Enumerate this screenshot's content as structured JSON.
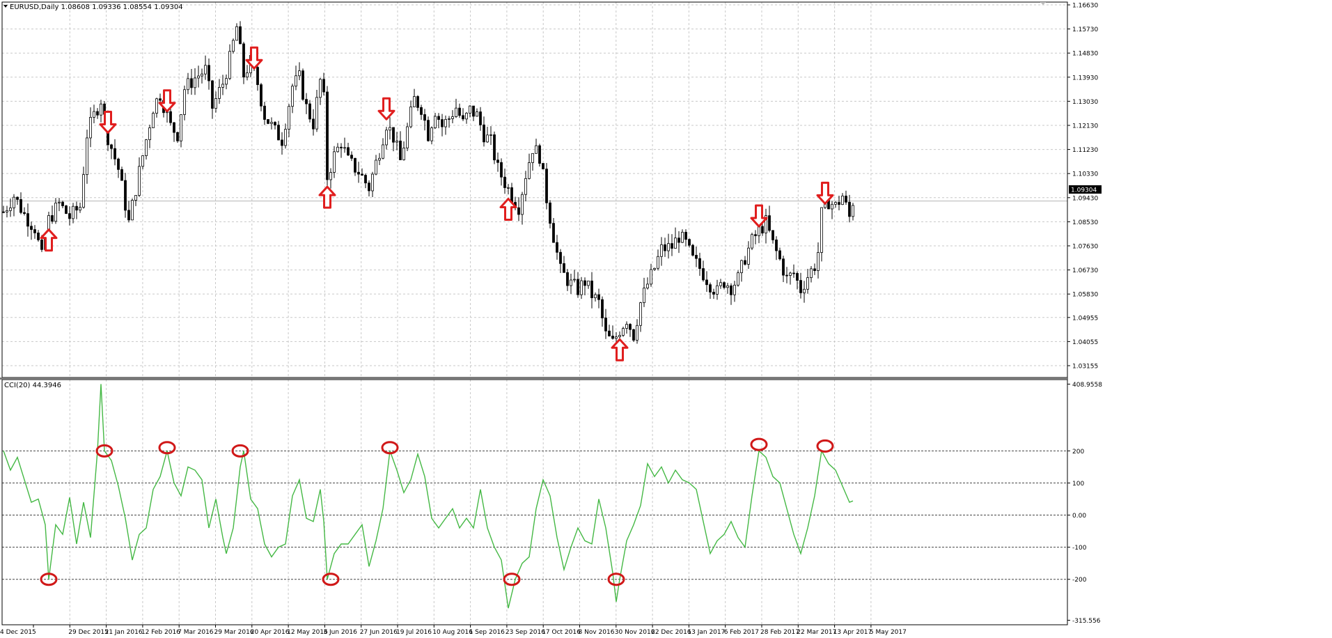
{
  "main_label": "EURUSD,Daily  1.08608 1.09336 1.08554 1.09304",
  "current_price": "1.09304",
  "indicator_label": "CCI(20) 44.3946",
  "colors": {
    "candle": "#000000",
    "cci_line": "#44b844",
    "arrow": "#e01e1e",
    "circle": "#d01818",
    "price_box": "#000000"
  },
  "chart_data": [
    {
      "type": "candlestick",
      "x_tick_labels": [
        "4 Dec 2015",
        "29 Dec 2015",
        "21 Jan 2016",
        "12 Feb 2016",
        "7 Mar 2016",
        "29 Mar 2016",
        "20 Apr 2016",
        "12 May 2016",
        "3 Jun 2016",
        "27 Jun 2016",
        "19 Jul 2016",
        "10 Aug 2016",
        "1 Sep 2016",
        "23 Sep 2016",
        "17 Oct 2016",
        "8 Nov 2016",
        "30 Nov 2016",
        "22 Dec 2016",
        "13 Jan 2017",
        "6 Feb 2017",
        "28 Feb 2017",
        "22 Mar 2017",
        "13 Apr 2017",
        "5 May 2017"
      ],
      "y_tick_labels": [
        "1.16630",
        "1.15730",
        "1.14830",
        "1.13930",
        "1.13030",
        "1.12130",
        "1.11230",
        "1.10330",
        "1.09430",
        "1.08530",
        "1.07630",
        "1.06730",
        "1.05830",
        "1.04955",
        "1.04055",
        "1.03155"
      ],
      "ylim": [
        1.03155,
        1.1663
      ],
      "price_path": [
        [
          0,
          1.089
        ],
        [
          3,
          1.095
        ],
        [
          6,
          1.088
        ],
        [
          9,
          1.083
        ],
        [
          11,
          1.072
        ],
        [
          13,
          1.086
        ],
        [
          16,
          1.092
        ],
        [
          19,
          1.087
        ],
        [
          22,
          1.091
        ],
        [
          24,
          1.118
        ],
        [
          26,
          1.125
        ],
        [
          28,
          1.131
        ],
        [
          30,
          1.117
        ],
        [
          33,
          1.105
        ],
        [
          36,
          1.085
        ],
        [
          39,
          1.104
        ],
        [
          41,
          1.116
        ],
        [
          43,
          1.128
        ],
        [
          45,
          1.133
        ],
        [
          48,
          1.121
        ],
        [
          50,
          1.118
        ],
        [
          52,
          1.135
        ],
        [
          55,
          1.139
        ],
        [
          58,
          1.142
        ],
        [
          60,
          1.128
        ],
        [
          63,
          1.137
        ],
        [
          65,
          1.146
        ],
        [
          67,
          1.158
        ],
        [
          69,
          1.14
        ],
        [
          71,
          1.145
        ],
        [
          73,
          1.137
        ],
        [
          75,
          1.125
        ],
        [
          78,
          1.119
        ],
        [
          80,
          1.116
        ],
        [
          83,
          1.136
        ],
        [
          85,
          1.139
        ],
        [
          87,
          1.128
        ],
        [
          89,
          1.122
        ],
        [
          91,
          1.138
        ],
        [
          92,
          1.131
        ],
        [
          93,
          1.102
        ],
        [
          95,
          1.11
        ],
        [
          97,
          1.115
        ],
        [
          99,
          1.108
        ],
        [
          102,
          1.104
        ],
        [
          105,
          1.098
        ],
        [
          108,
          1.112
        ],
        [
          110,
          1.122
        ],
        [
          112,
          1.117
        ],
        [
          114,
          1.108
        ],
        [
          116,
          1.12
        ],
        [
          118,
          1.131
        ],
        [
          120,
          1.128
        ],
        [
          122,
          1.118
        ],
        [
          124,
          1.127
        ],
        [
          126,
          1.121
        ],
        [
          128,
          1.124
        ],
        [
          130,
          1.128
        ],
        [
          132,
          1.122
        ],
        [
          134,
          1.127
        ],
        [
          136,
          1.125
        ],
        [
          138,
          1.118
        ],
        [
          140,
          1.115
        ],
        [
          142,
          1.105
        ],
        [
          144,
          1.1
        ],
        [
          146,
          1.095
        ],
        [
          148,
          1.091
        ],
        [
          150,
          1.103
        ],
        [
          152,
          1.113
        ],
        [
          154,
          1.11
        ],
        [
          156,
          1.094
        ],
        [
          158,
          1.08
        ],
        [
          160,
          1.067
        ],
        [
          163,
          1.062
        ],
        [
          165,
          1.06
        ],
        [
          167,
          1.063
        ],
        [
          169,
          1.058
        ],
        [
          171,
          1.055
        ],
        [
          173,
          1.043
        ],
        [
          175,
          1.04
        ],
        [
          177,
          1.045
        ],
        [
          179,
          1.049
        ],
        [
          181,
          1.043
        ],
        [
          183,
          1.055
        ],
        [
          185,
          1.062
        ],
        [
          187,
          1.068
        ],
        [
          189,
          1.075
        ],
        [
          192,
          1.076
        ],
        [
          194,
          1.08
        ],
        [
          196,
          1.077
        ],
        [
          198,
          1.071
        ],
        [
          200,
          1.068
        ],
        [
          203,
          1.062
        ],
        [
          205,
          1.059
        ],
        [
          207,
          1.063
        ],
        [
          209,
          1.061
        ],
        [
          211,
          1.064
        ],
        [
          213,
          1.072
        ],
        [
          215,
          1.078
        ],
        [
          217,
          1.082
        ],
        [
          219,
          1.085
        ],
        [
          221,
          1.077
        ],
        [
          223,
          1.071
        ],
        [
          225,
          1.064
        ],
        [
          227,
          1.066
        ],
        [
          229,
          1.06
        ],
        [
          231,
          1.065
        ],
        [
          233,
          1.069
        ],
        [
          234,
          1.074
        ],
        [
          235,
          1.088
        ],
        [
          237,
          1.093
        ],
        [
          239,
          1.091
        ],
        [
          241,
          1.095
        ],
        [
          243,
          1.087
        ],
        [
          244,
          1.093
        ]
      ]
    },
    {
      "type": "line",
      "title": "CCI(20) 44.3946",
      "y_tick_labels": [
        "408.9558",
        "200",
        "100",
        "0.00",
        "-100",
        "-200",
        "-315.556"
      ],
      "ylim": [
        -315.556,
        408.9558
      ],
      "levels": [
        200,
        100,
        0,
        -100,
        -200
      ],
      "series": [
        {
          "values": [
            [
              0,
              200
            ],
            [
              2,
              140
            ],
            [
              4,
              180
            ],
            [
              6,
              110
            ],
            [
              8,
              40
            ],
            [
              10,
              50
            ],
            [
              12,
              -30
            ],
            [
              13,
              -200
            ],
            [
              15,
              -30
            ],
            [
              17,
              -60
            ],
            [
              19,
              55
            ],
            [
              21,
              -90
            ],
            [
              23,
              40
            ],
            [
              25,
              -70
            ],
            [
              27,
              200
            ],
            [
              28,
              408
            ],
            [
              29,
              200
            ],
            [
              31,
              170
            ],
            [
              33,
              90
            ],
            [
              35,
              -10
            ],
            [
              37,
              -140
            ],
            [
              39,
              -60
            ],
            [
              41,
              -40
            ],
            [
              43,
              80
            ],
            [
              45,
              120
            ],
            [
              47,
              200
            ],
            [
              49,
              100
            ],
            [
              51,
              60
            ],
            [
              53,
              150
            ],
            [
              55,
              140
            ],
            [
              57,
              110
            ],
            [
              59,
              -40
            ],
            [
              61,
              50
            ],
            [
              63,
              -70
            ],
            [
              64,
              -120
            ],
            [
              66,
              -40
            ],
            [
              68,
              150
            ],
            [
              69,
              200
            ],
            [
              71,
              50
            ],
            [
              73,
              20
            ],
            [
              75,
              -90
            ],
            [
              77,
              -130
            ],
            [
              79,
              -100
            ],
            [
              81,
              -90
            ],
            [
              83,
              60
            ],
            [
              85,
              110
            ],
            [
              87,
              -10
            ],
            [
              89,
              -20
            ],
            [
              91,
              80
            ],
            [
              92,
              -20
            ],
            [
              93,
              -200
            ],
            [
              95,
              -120
            ],
            [
              97,
              -90
            ],
            [
              99,
              -90
            ],
            [
              101,
              -60
            ],
            [
              103,
              -30
            ],
            [
              105,
              -160
            ],
            [
              107,
              -80
            ],
            [
              109,
              20
            ],
            [
              111,
              200
            ],
            [
              113,
              140
            ],
            [
              115,
              70
            ],
            [
              117,
              110
            ],
            [
              119,
              190
            ],
            [
              121,
              120
            ],
            [
              123,
              -10
            ],
            [
              125,
              -40
            ],
            [
              127,
              -10
            ],
            [
              129,
              20
            ],
            [
              131,
              -40
            ],
            [
              133,
              -10
            ],
            [
              135,
              -40
            ],
            [
              137,
              80
            ],
            [
              139,
              -40
            ],
            [
              141,
              -100
            ],
            [
              143,
              -140
            ],
            [
              145,
              -290
            ],
            [
              147,
              -200
            ],
            [
              149,
              -150
            ],
            [
              151,
              -130
            ],
            [
              153,
              20
            ],
            [
              155,
              110
            ],
            [
              157,
              60
            ],
            [
              159,
              -70
            ],
            [
              161,
              -170
            ],
            [
              163,
              -100
            ],
            [
              165,
              -40
            ],
            [
              167,
              -80
            ],
            [
              169,
              -90
            ],
            [
              171,
              50
            ],
            [
              173,
              -40
            ],
            [
              175,
              -180
            ],
            [
              176,
              -270
            ],
            [
              177,
              -200
            ],
            [
              179,
              -80
            ],
            [
              181,
              -30
            ],
            [
              183,
              30
            ],
            [
              185,
              160
            ],
            [
              187,
              120
            ],
            [
              189,
              150
            ],
            [
              191,
              100
            ],
            [
              193,
              140
            ],
            [
              195,
              110
            ],
            [
              197,
              100
            ],
            [
              199,
              80
            ],
            [
              201,
              -20
            ],
            [
              203,
              -120
            ],
            [
              205,
              -80
            ],
            [
              207,
              -60
            ],
            [
              209,
              -20
            ],
            [
              211,
              -70
            ],
            [
              213,
              -100
            ],
            [
              215,
              60
            ],
            [
              217,
              200
            ],
            [
              219,
              180
            ],
            [
              221,
              120
            ],
            [
              223,
              100
            ],
            [
              225,
              20
            ],
            [
              227,
              -60
            ],
            [
              229,
              -120
            ],
            [
              231,
              -40
            ],
            [
              233,
              60
            ],
            [
              235,
              200
            ],
            [
              237,
              160
            ],
            [
              239,
              140
            ],
            [
              241,
              90
            ],
            [
              243,
              40
            ],
            [
              244,
              44
            ]
          ]
        }
      ]
    }
  ],
  "annotations": {
    "arrows": [
      {
        "i": 13,
        "dir": "up"
      },
      {
        "i": 30,
        "dir": "down"
      },
      {
        "i": 47,
        "dir": "down"
      },
      {
        "i": 72,
        "dir": "down"
      },
      {
        "i": 93,
        "dir": "up"
      },
      {
        "i": 110,
        "dir": "down"
      },
      {
        "i": 145,
        "dir": "up"
      },
      {
        "i": 177,
        "dir": "up"
      },
      {
        "i": 217,
        "dir": "down"
      },
      {
        "i": 236,
        "dir": "down"
      }
    ],
    "circles": [
      {
        "i": 13,
        "v": -200
      },
      {
        "i": 29,
        "v": 200
      },
      {
        "i": 47,
        "v": 210
      },
      {
        "i": 68,
        "v": 200
      },
      {
        "i": 94,
        "v": -200
      },
      {
        "i": 111,
        "v": 210
      },
      {
        "i": 146,
        "v": -200
      },
      {
        "i": 176,
        "v": -200
      },
      {
        "i": 217,
        "v": 220
      },
      {
        "i": 236,
        "v": 215
      }
    ]
  }
}
